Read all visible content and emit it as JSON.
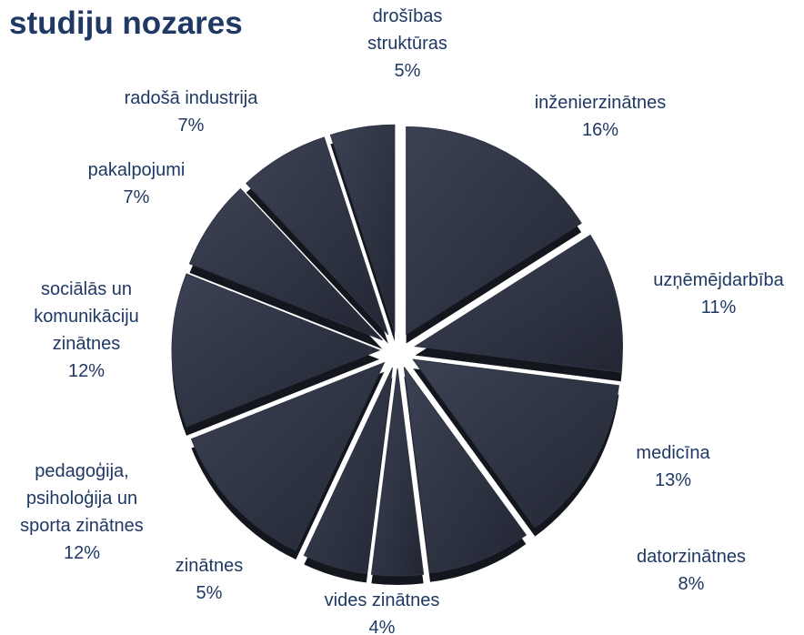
{
  "chart_data": {
    "type": "pie",
    "title": "studiju nozares",
    "categories": [
      "inženierzinātnes",
      "uzņēmējdarbība",
      "medicīna",
      "datorzinātnes",
      "vides zinātnes",
      "zinātnes",
      "pedagoģija,\npsiholoģija un\nsporta zinātnes",
      "sociālās un\nkomunikāciju\nzinātnes",
      "pakalpojumi",
      "radošā industrija",
      "drošības\nstruktūras"
    ],
    "values": [
      16,
      11,
      13,
      8,
      4,
      5,
      12,
      12,
      7,
      7,
      5
    ],
    "value_labels": [
      "16%",
      "11%",
      "13%",
      "8%",
      "4%",
      "5%",
      "12%",
      "12%",
      "7%",
      "7%",
      "5%"
    ],
    "color": "#2e3343"
  }
}
